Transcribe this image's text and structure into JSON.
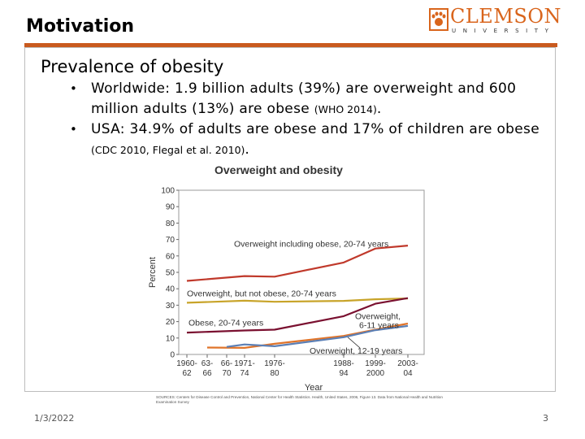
{
  "slide": {
    "title": "Motivation",
    "logo": {
      "word": "CLEMSON",
      "sub": "UNIVERSITY"
    },
    "subtitle": "Prevalence of obesity",
    "bullets": [
      {
        "text": "Worldwide: 1.9 billion adults (39%) are overweight and 600 million adults (13%) are obese",
        "cite": "(WHO 2014)",
        "end": "."
      },
      {
        "text": "USA: 34.9% of adults are obese and 17% of children are obese",
        "cite": "(CDC 2010, Flegal et al. 2010)",
        "end": "."
      }
    ],
    "source": "SOURCES: Centers for Disease Control and Prevention, National Center for Health Statistics. Health, United States, 2006, Figure 13. Data from National Health and Nutrition Examination Survey",
    "date": "1/3/2022",
    "page": "3"
  },
  "colors": {
    "accent": "#c95a1e",
    "overweight_incl_obese": "#c0392b",
    "overweight_not_obese": "#c8a42a",
    "obese": "#7a1030",
    "child_6_11": "#e0742a",
    "child_12_19": "#5b7fb5"
  },
  "chart_data": {
    "type": "line",
    "title": "Overweight and obesity",
    "xlabel": "Year",
    "ylabel": "Percent",
    "ylim": [
      0,
      100
    ],
    "yticks": [
      0,
      10,
      20,
      30,
      40,
      50,
      60,
      70,
      80,
      90,
      100
    ],
    "categories": [
      "1960-62",
      "63-66",
      "66-70",
      "1971-74",
      "1976-80",
      "1988-94",
      "1999-2000",
      "2003-04"
    ],
    "category_labels": [
      [
        "1960-",
        "62"
      ],
      [
        "63-",
        "66"
      ],
      [
        "66-",
        "70"
      ],
      [
        "1971-",
        "74"
      ],
      [
        "1976-",
        "80"
      ],
      [
        "1988-",
        "94"
      ],
      [
        "1999-",
        "2000"
      ],
      [
        "2003-",
        "04"
      ]
    ],
    "series": [
      {
        "name": "Overweight including obese, 20-74 years",
        "color": "#c0392b",
        "x": [
          "1960-62",
          "1971-74",
          "1976-80",
          "1988-94",
          "1999-2000",
          "2003-04"
        ],
        "values": [
          44.8,
          47.7,
          47.4,
          56.0,
          64.5,
          66.3
        ]
      },
      {
        "name": "Overweight, but not obese, 20-74 years",
        "color": "#c8a42a",
        "x": [
          "1960-62",
          "1971-74",
          "1976-80",
          "1988-94",
          "1999-2000",
          "2003-04"
        ],
        "values": [
          31.5,
          32.7,
          32.1,
          32.6,
          33.6,
          34.1
        ]
      },
      {
        "name": "Obese, 20-74 years",
        "color": "#7a1030",
        "x": [
          "1960-62",
          "1971-74",
          "1976-80",
          "1988-94",
          "1999-2000",
          "2003-04"
        ],
        "values": [
          13.3,
          14.6,
          15.1,
          23.3,
          30.9,
          34.3
        ]
      },
      {
        "name": "Overweight, 6-11 years",
        "color": "#e0742a",
        "x": [
          "63-66",
          "1971-74",
          "1976-80",
          "1988-94",
          "1999-2000",
          "2003-04"
        ],
        "values": [
          4.2,
          4.0,
          6.5,
          11.3,
          15.1,
          18.8
        ]
      },
      {
        "name": "Overweight, 12-19 years",
        "color": "#5b7fb5",
        "x": [
          "66-70",
          "1971-74",
          "1976-80",
          "1988-94",
          "1999-2000",
          "2003-04"
        ],
        "values": [
          4.6,
          6.1,
          5.0,
          10.5,
          14.8,
          17.4
        ]
      }
    ],
    "series_labels": [
      {
        "text": "Overweight including obese, 20-74 years"
      },
      {
        "text": "Overweight, but not obese, 20-74 years"
      },
      {
        "text": "Obese, 20-74 years"
      },
      {
        "text": "Overweight,",
        "line2": "6-11 years"
      },
      {
        "text": "Overweight, 12-19 years"
      }
    ]
  }
}
